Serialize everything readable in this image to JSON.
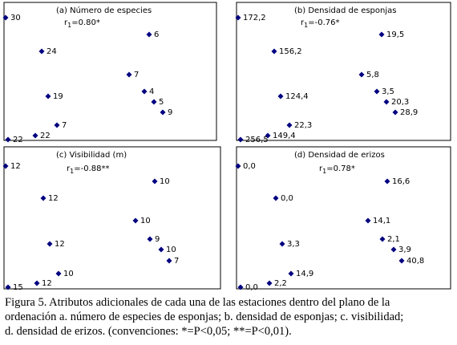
{
  "panels": [
    {
      "title": "(a) Número de especies",
      "stat": {
        "symbol": "r",
        "subscript": "1",
        "value": "=0.80*"
      },
      "labels": [
        "30",
        "6",
        "24",
        "7",
        "19",
        "4",
        "5",
        "9",
        "7",
        "22",
        "22"
      ]
    },
    {
      "title": "(b) Densidad de esponjas",
      "stat": {
        "symbol": "r",
        "subscript": "1",
        "value": "=-0.76*"
      },
      "labels": [
        "172,2",
        "19,5",
        "156,2",
        "5,8",
        "124,4",
        "3,5",
        "20,3",
        "28,9",
        "22,3",
        "149,4",
        "256,5"
      ]
    },
    {
      "title": "(c) Visibilidad (m)",
      "stat": {
        "symbol": "r",
        "subscript": "1",
        "value": "=-0.88**"
      },
      "labels": [
        "12",
        "10",
        "12",
        "10",
        "12",
        "9",
        "10",
        "7",
        "10",
        "12",
        "15"
      ]
    },
    {
      "title": "(d) Densidad de erizos",
      "stat": {
        "symbol": "r",
        "subscript": "1",
        "value": "=0.78*"
      },
      "labels": [
        "0,0",
        "16,6",
        "0,0",
        "14,1",
        "3,3",
        "2,1",
        "3,9",
        "40,8",
        "14,9",
        "2,2",
        "0,0"
      ]
    }
  ],
  "caption": [
    "Figura 5.  Atributos adicionales de cada una de las estaciones dentro del plano de la",
    "ordenación a. número de especies de esponjas; b. densidad de esponjas; c. visibilidad;",
    "d. densidad de erizos. (convenciones: *=P<0,05; **=P<0,01)."
  ]
}
